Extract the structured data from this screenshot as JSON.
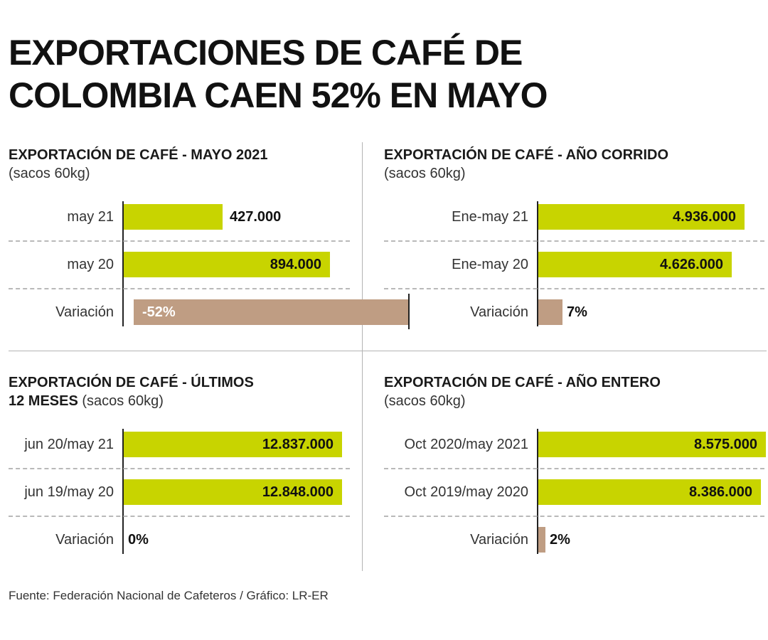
{
  "title": {
    "line1": "EXPORTACIONES DE CAFÉ DE",
    "line2": "COLOMBIA CAEN 52% EN MAYO"
  },
  "source": "Fuente: Federación Nacional de Cafeteros / Gráfico: LR-ER",
  "colors": {
    "bar_primary": "#c8d400",
    "bar_variation": "#bf9d83"
  },
  "chart_data": [
    {
      "type": "bar",
      "title": "EXPORTACIÓN DE CAFÉ - MAYO 2021",
      "unit": "(sacos 60kg)",
      "categories": [
        "may 21",
        "may 20"
      ],
      "values": [
        427000,
        894000
      ],
      "value_labels": [
        "427.000",
        "894.000"
      ],
      "variation": {
        "label": "Variación",
        "value": -52,
        "text": "-52%"
      }
    },
    {
      "type": "bar",
      "title": "EXPORTACIÓN DE CAFÉ - AÑO CORRIDO",
      "unit": "(sacos 60kg)",
      "categories": [
        "Ene-may 21",
        "Ene-may 20"
      ],
      "values": [
        4936000,
        4626000
      ],
      "value_labels": [
        "4.936.000",
        "4.626.000"
      ],
      "variation": {
        "label": "Variación",
        "value": 7,
        "text": "7%"
      }
    },
    {
      "type": "bar",
      "title": "EXPORTACIÓN DE CAFÉ - ÚLTIMOS",
      "title_line2": "12 MESES",
      "unit": "(sacos 60kg)",
      "categories": [
        "jun 20/may 21",
        "jun 19/may 20"
      ],
      "values": [
        12837000,
        12848000
      ],
      "value_labels": [
        "12.837.000",
        "12.848.000"
      ],
      "variation": {
        "label": "Variación",
        "value": 0,
        "text": "0%"
      }
    },
    {
      "type": "bar",
      "title": "EXPORTACIÓN DE CAFÉ - AÑO ENTERO",
      "unit": "(sacos 60kg)",
      "categories": [
        "Oct 2020/may 2021",
        "Oct 2019/may 2020"
      ],
      "values": [
        8575000,
        8386000
      ],
      "value_labels": [
        "8.575.000",
        "8.386.000"
      ],
      "variation": {
        "label": "Variación",
        "value": 2,
        "text": "2%"
      }
    }
  ]
}
